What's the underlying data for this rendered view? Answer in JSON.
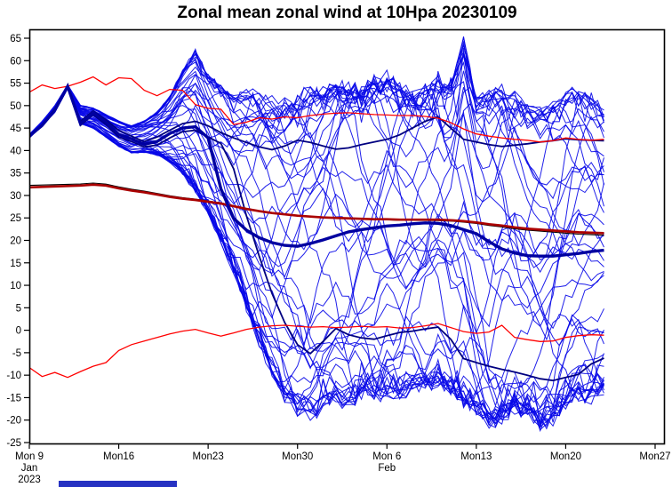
{
  "window": {
    "title": "Zonal mean zonal wind at 10Hpa 20230109"
  },
  "chart_data": {
    "type": "line",
    "title": "Zonal mean zonal wind at 10Hpa 20230109",
    "xlabel": "",
    "ylabel": "",
    "grid": false,
    "legend": "none",
    "ylim": [
      -25,
      65
    ],
    "y_ticks": [
      65,
      60,
      55,
      50,
      45,
      40,
      35,
      30,
      25,
      20,
      15,
      10,
      5,
      0,
      -5,
      -10,
      -15,
      -20,
      -25
    ],
    "x_total_days": 49,
    "forecast_end_day": 45,
    "x_ticks": [
      {
        "day": 0,
        "label": "Mon 9",
        "sub": [
          "Jan",
          "2023"
        ]
      },
      {
        "day": 7,
        "label": "Mon16",
        "sub": []
      },
      {
        "day": 14,
        "label": "Mon23",
        "sub": []
      },
      {
        "day": 21,
        "label": "Mon30",
        "sub": []
      },
      {
        "day": 28,
        "label": "Mon 6",
        "sub": [
          "Feb"
        ]
      },
      {
        "day": 35,
        "label": "Mon13",
        "sub": []
      },
      {
        "day": 42,
        "label": "Mon20",
        "sub": []
      },
      {
        "day": 49,
        "label": "Mon27",
        "sub": []
      }
    ],
    "series": [
      {
        "name": "climatology_upper",
        "color": "#ff0000",
        "width": 1.3,
        "values": [
          53.0,
          54.6,
          53.8,
          54.3,
          55.2,
          56.4,
          54.6,
          56.2,
          56.0,
          53.4,
          52.2,
          53.6,
          53.4,
          50.2,
          49.4,
          49.2,
          45.8,
          46.3,
          47.3,
          47.0,
          47.5,
          47.3,
          47.8,
          48.1,
          48.3,
          48.4,
          48.2,
          48.0,
          47.9,
          47.8,
          47.8,
          47.6,
          47.2,
          46.2,
          44.8,
          43.7,
          43.2,
          42.8,
          42.5,
          42.3,
          41.9,
          42.2,
          42.8,
          42.5,
          42.3,
          42.5
        ]
      },
      {
        "name": "climatology_lower",
        "color": "#ff0000",
        "width": 1.3,
        "values": [
          -8.3,
          -10.3,
          -9.4,
          -10.5,
          -9.2,
          -8.0,
          -7.2,
          -4.5,
          -3.2,
          -2.4,
          -1.6,
          -0.8,
          -0.2,
          0.2,
          -0.6,
          -1.3,
          -0.6,
          0.2,
          0.7,
          1.0,
          1.1,
          0.9,
          0.7,
          0.8,
          0.6,
          0.7,
          0.9,
          0.7,
          0.8,
          0.5,
          0.6,
          1.0,
          1.5,
          0.6,
          -0.3,
          -0.7,
          -0.4,
          1.1,
          -1.6,
          -2.1,
          -2.5,
          -2.4,
          -1.6,
          -1.2,
          -1.0,
          -1.1
        ]
      },
      {
        "name": "control_high",
        "color": "#000080",
        "width": 1.8,
        "values": [
          43.3,
          45.8,
          49.3,
          54.5,
          46.5,
          48.8,
          46.8,
          44.5,
          43.2,
          42.0,
          43.0,
          44.5,
          46.0,
          46.5,
          45.5,
          44.0,
          42.8,
          41.8,
          40.8,
          40.2,
          41.0,
          42.3,
          41.8,
          41.0,
          40.3,
          40.6,
          41.3,
          41.9,
          42.5,
          43.5,
          45.0,
          46.5,
          47.5,
          45.0,
          42.5,
          41.9,
          41.3,
          40.9,
          41.2,
          41.5,
          41.9,
          42.2,
          42.6,
          42.4,
          42.3,
          42.2
        ]
      },
      {
        "name": "control_low",
        "color": "#000080",
        "width": 1.8,
        "values": [
          43.1,
          45.4,
          48.8,
          54.2,
          45.6,
          48.0,
          45.8,
          43.0,
          42.0,
          40.8,
          41.2,
          42.8,
          44.2,
          44.5,
          43.0,
          41.6,
          35.9,
          25.5,
          16.5,
          8.2,
          1.7,
          -3.2,
          -5.2,
          -2.5,
          0.4,
          -1.0,
          -1.7,
          -2.0,
          -1.2,
          -0.5,
          -0.2,
          0.3,
          0.7,
          -2.0,
          -6.3,
          -7.2,
          -8.0,
          -8.7,
          -9.3,
          -10.0,
          -10.8,
          -11.2,
          -10.5,
          -9.8,
          -7.5,
          -6.2
        ]
      },
      {
        "name": "climatology_mean",
        "color": "#aa0000",
        "width": 2.7,
        "companion_color": "#000000",
        "values": [
          31.8,
          31.9,
          32.0,
          32.1,
          32.2,
          32.4,
          32.2,
          31.6,
          31.1,
          30.7,
          30.2,
          29.7,
          29.3,
          29.0,
          28.6,
          28.2,
          27.6,
          27.0,
          26.5,
          26.1,
          25.8,
          25.5,
          25.3,
          25.1,
          25.0,
          24.9,
          24.8,
          24.7,
          24.7,
          24.6,
          24.6,
          24.6,
          24.6,
          24.5,
          24.3,
          24.0,
          23.6,
          23.3,
          22.9,
          22.6,
          22.4,
          22.2,
          22.0,
          21.8,
          21.7,
          21.6
        ]
      },
      {
        "name": "ensemble_mean",
        "color": "#0000a0",
        "width": 3.4,
        "values": [
          43.2,
          45.6,
          49.0,
          54.3,
          46.0,
          48.4,
          46.3,
          43.6,
          42.6,
          41.4,
          42.0,
          43.8,
          45.0,
          45.3,
          42.8,
          31.5,
          24.9,
          22.3,
          20.6,
          19.5,
          18.9,
          18.7,
          19.3,
          20.1,
          21.0,
          21.9,
          22.4,
          22.8,
          23.2,
          23.4,
          23.7,
          23.9,
          23.8,
          23.3,
          22.4,
          21.5,
          19.7,
          18.1,
          17.2,
          16.6,
          16.5,
          16.5,
          16.8,
          17.1,
          17.5,
          17.8
        ]
      }
    ],
    "ensemble": {
      "count": 50,
      "color": "#0808e8",
      "width": 1,
      "opacity": 0.9,
      "seed": 7,
      "step_days": 0.5,
      "envelope_top": [
        43.6,
        46.5,
        50.0,
        54.6,
        50.0,
        49.5,
        48.0,
        46.5,
        45.5,
        46.5,
        48.5,
        52.0,
        58.0,
        62.0,
        57.0,
        54.5,
        52.0,
        53.0,
        52.5,
        51.0,
        50.5,
        52.0,
        54.0,
        53.0,
        55.0,
        54.5,
        53.5,
        55.5,
        56.5,
        54.5,
        52.5,
        54.0,
        56.5,
        55.0,
        64.0,
        52.0,
        52.0,
        54.0,
        52.5,
        50.0,
        48.5,
        50.5,
        52.5,
        53.5,
        52.0,
        49.0
      ],
      "envelope_bottom": [
        42.8,
        45.5,
        48.5,
        53.8,
        46.0,
        45.0,
        43.0,
        41.0,
        39.5,
        39.5,
        39.0,
        37.5,
        35.0,
        31.0,
        26.0,
        20.0,
        13.0,
        5.0,
        -3.0,
        -10.0,
        -15.0,
        -18.0,
        -19.5,
        -17.5,
        -15.5,
        -16.5,
        -14.5,
        -15.5,
        -13.5,
        -15.0,
        -12.5,
        -13.5,
        -11.5,
        -14.0,
        -16.5,
        -18.0,
        -21.0,
        -19.5,
        -17.5,
        -18.5,
        -21.0,
        -20.0,
        -16.5,
        -14.5,
        -15.5,
        -13.5
      ]
    },
    "colors": {
      "frame": "#000000",
      "tick_text": "#000000"
    }
  },
  "footer": {
    "bar_color": "#2632c2"
  }
}
